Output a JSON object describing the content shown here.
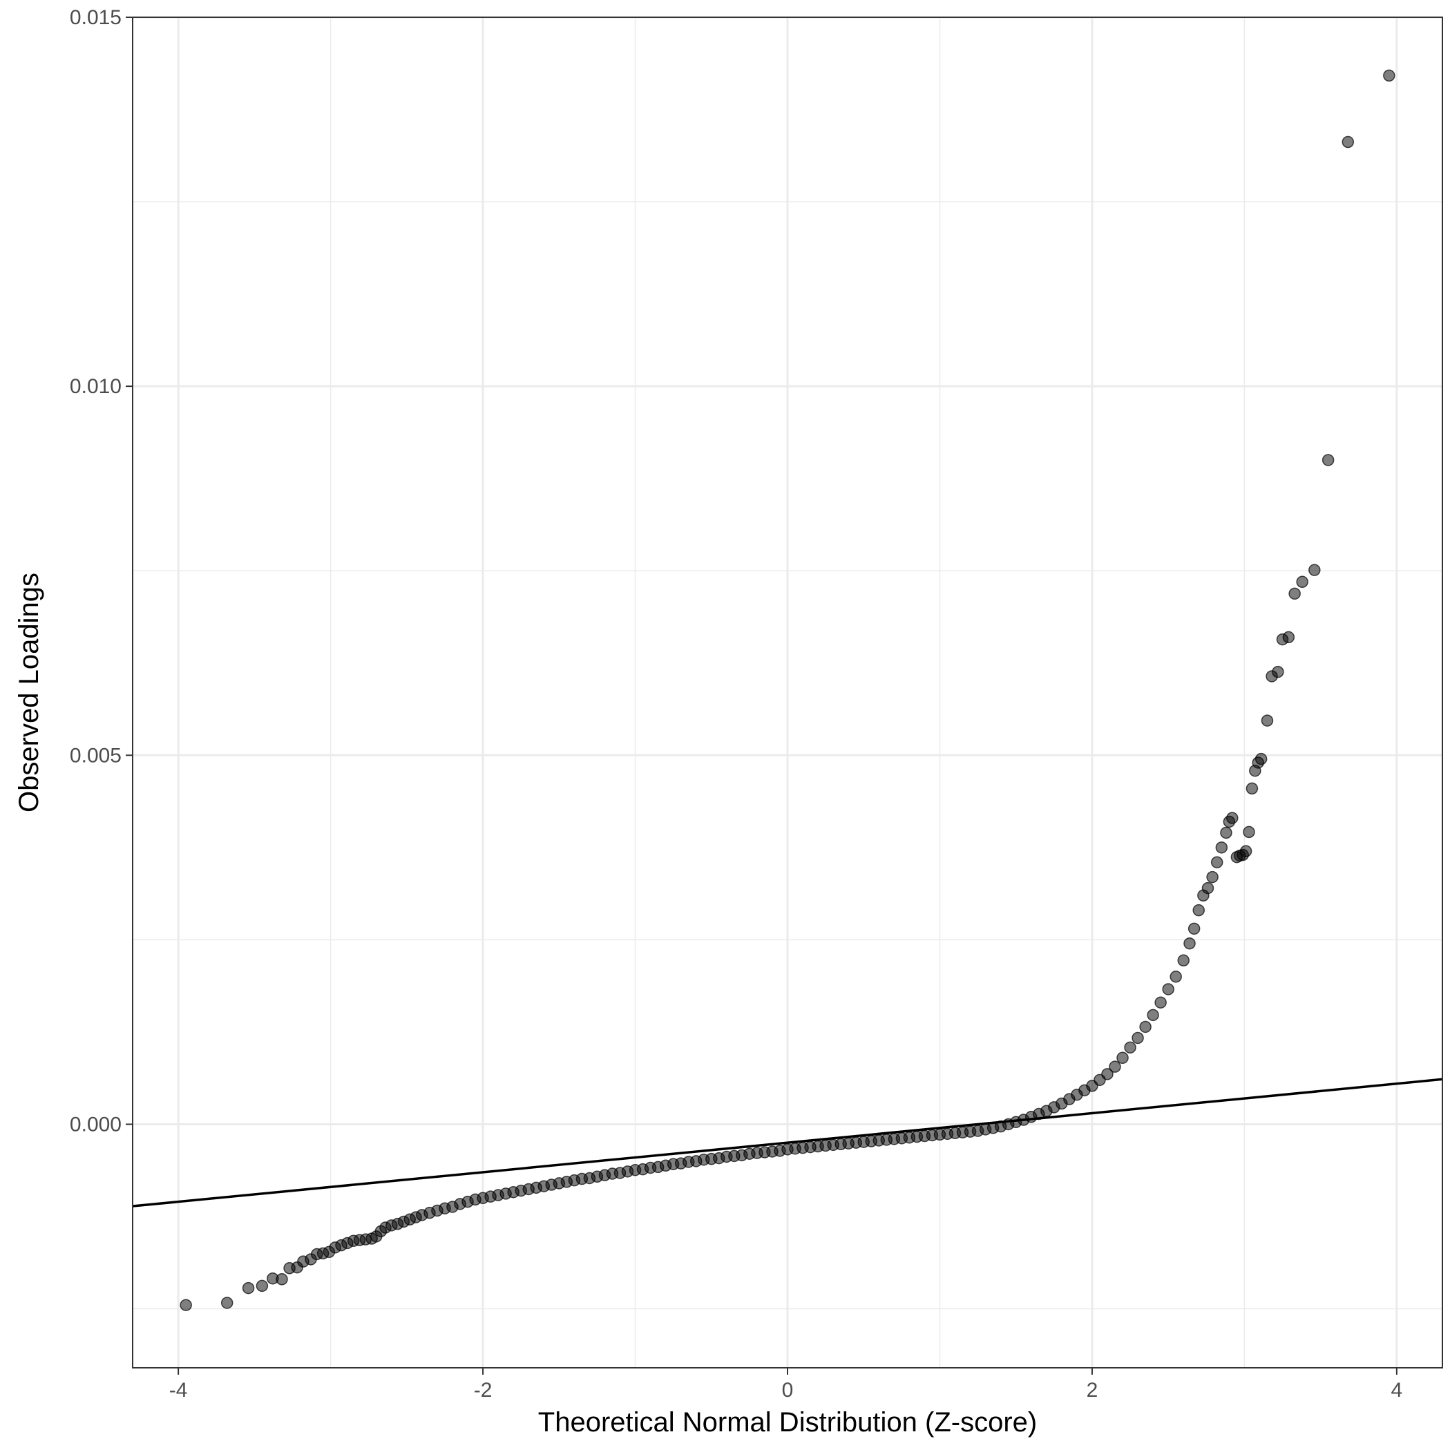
{
  "chart_data": {
    "type": "scatter",
    "title": "",
    "xlabel": "Theoretical Normal Distribution (Z-score)",
    "ylabel": "Observed Loadings",
    "xlim": [
      -4.3,
      4.3
    ],
    "ylim": [
      -0.0033,
      0.015
    ],
    "x_ticks": [
      {
        "value": -4,
        "label": "-4"
      },
      {
        "value": -2,
        "label": "-2"
      },
      {
        "value": 0,
        "label": "0"
      },
      {
        "value": 2,
        "label": "2"
      },
      {
        "value": 4,
        "label": "4"
      }
    ],
    "y_ticks": [
      {
        "value": 0.0,
        "label": "0.000"
      },
      {
        "value": 0.005,
        "label": "0.005"
      },
      {
        "value": 0.01,
        "label": "0.010"
      },
      {
        "value": 0.015,
        "label": "0.015"
      }
    ],
    "grid": true,
    "colors": {
      "points": "#000000",
      "point_opacity": 0.5,
      "line": "#000000",
      "grid": "#ebebeb",
      "panel_border": "#333333"
    },
    "reference_line": {
      "intercept": -0.00025,
      "slope": 0.0002
    },
    "points": [
      [
        -3.95,
        -0.00245
      ],
      [
        -3.68,
        -0.00242
      ],
      [
        -3.54,
        -0.00222
      ],
      [
        -3.45,
        -0.00219
      ],
      [
        -3.38,
        -0.00209
      ],
      [
        -3.32,
        -0.0021
      ],
      [
        -3.27,
        -0.00195
      ],
      [
        -3.22,
        -0.00194
      ],
      [
        -3.18,
        -0.00186
      ],
      [
        -3.13,
        -0.00183
      ],
      [
        -3.09,
        -0.00176
      ],
      [
        -3.05,
        -0.00175
      ],
      [
        -3.01,
        -0.00173
      ],
      [
        -2.97,
        -0.00167
      ],
      [
        -2.93,
        -0.00164
      ],
      [
        -2.89,
        -0.00161
      ],
      [
        -2.85,
        -0.00158
      ],
      [
        -2.81,
        -0.00157
      ],
      [
        -2.77,
        -0.00156
      ],
      [
        -2.73,
        -0.00155
      ],
      [
        -2.7,
        -0.00152
      ],
      [
        -2.67,
        -0.00145
      ],
      [
        -2.64,
        -0.0014
      ],
      [
        -2.6,
        -0.00137
      ],
      [
        -2.56,
        -0.00135
      ],
      [
        -2.52,
        -0.00132
      ],
      [
        -2.48,
        -0.00129
      ],
      [
        -2.44,
        -0.00126
      ],
      [
        -2.4,
        -0.00123
      ],
      [
        -2.35,
        -0.0012
      ],
      [
        -2.3,
        -0.00117
      ],
      [
        -2.25,
        -0.00114
      ],
      [
        -2.2,
        -0.00112
      ],
      [
        -2.15,
        -0.00108
      ],
      [
        -2.1,
        -0.00105
      ],
      [
        -2.05,
        -0.00102
      ],
      [
        -2.0,
        -0.001
      ],
      [
        -1.95,
        -0.00098
      ],
      [
        -1.9,
        -0.00096
      ],
      [
        -1.85,
        -0.00094
      ],
      [
        -1.8,
        -0.00092
      ],
      [
        -1.75,
        -0.0009
      ],
      [
        -1.7,
        -0.00088
      ],
      [
        -1.65,
        -0.00086
      ],
      [
        -1.6,
        -0.00084
      ],
      [
        -1.55,
        -0.00082
      ],
      [
        -1.5,
        -0.0008
      ],
      [
        -1.45,
        -0.00078
      ],
      [
        -1.4,
        -0.00076
      ],
      [
        -1.35,
        -0.00074
      ],
      [
        -1.3,
        -0.00073
      ],
      [
        -1.25,
        -0.00071
      ],
      [
        -1.2,
        -0.00069
      ],
      [
        -1.15,
        -0.00067
      ],
      [
        -1.1,
        -0.00066
      ],
      [
        -1.05,
        -0.00064
      ],
      [
        -1.0,
        -0.00062
      ],
      [
        -0.95,
        -0.00061
      ],
      [
        -0.9,
        -0.00059
      ],
      [
        -0.85,
        -0.00058
      ],
      [
        -0.8,
        -0.00056
      ],
      [
        -0.75,
        -0.00054
      ],
      [
        -0.7,
        -0.00053
      ],
      [
        -0.65,
        -0.00051
      ],
      [
        -0.6,
        -0.0005
      ],
      [
        -0.55,
        -0.00048
      ],
      [
        -0.5,
        -0.00047
      ],
      [
        -0.45,
        -0.00046
      ],
      [
        -0.4,
        -0.00044
      ],
      [
        -0.35,
        -0.00043
      ],
      [
        -0.3,
        -0.00042
      ],
      [
        -0.25,
        -0.0004
      ],
      [
        -0.2,
        -0.00039
      ],
      [
        -0.15,
        -0.00038
      ],
      [
        -0.1,
        -0.00037
      ],
      [
        -0.05,
        -0.00036
      ],
      [
        0.0,
        -0.00034
      ],
      [
        0.05,
        -0.00033
      ],
      [
        0.1,
        -0.00032
      ],
      [
        0.15,
        -0.00031
      ],
      [
        0.2,
        -0.0003
      ],
      [
        0.25,
        -0.00029
      ],
      [
        0.3,
        -0.00028
      ],
      [
        0.35,
        -0.00027
      ],
      [
        0.4,
        -0.00026
      ],
      [
        0.45,
        -0.00025
      ],
      [
        0.5,
        -0.00024
      ],
      [
        0.55,
        -0.00023
      ],
      [
        0.6,
        -0.00022
      ],
      [
        0.65,
        -0.00021
      ],
      [
        0.7,
        -0.0002
      ],
      [
        0.75,
        -0.00019
      ],
      [
        0.8,
        -0.00018
      ],
      [
        0.85,
        -0.00017
      ],
      [
        0.9,
        -0.00016
      ],
      [
        0.95,
        -0.00015
      ],
      [
        1.0,
        -0.00014
      ],
      [
        1.05,
        -0.00013
      ],
      [
        1.1,
        -0.00012
      ],
      [
        1.15,
        -0.00011
      ],
      [
        1.2,
        -0.0001
      ],
      [
        1.25,
        -9e-05
      ],
      [
        1.3,
        -7e-05
      ],
      [
        1.35,
        -5e-05
      ],
      [
        1.4,
        -3e-05
      ],
      [
        1.45,
        0.0
      ],
      [
        1.5,
        3e-05
      ],
      [
        1.55,
        6e-05
      ],
      [
        1.6,
        0.0001
      ],
      [
        1.65,
        0.00014
      ],
      [
        1.7,
        0.00018
      ],
      [
        1.75,
        0.00023
      ],
      [
        1.8,
        0.00028
      ],
      [
        1.85,
        0.00034
      ],
      [
        1.9,
        0.0004
      ],
      [
        1.95,
        0.00046
      ],
      [
        2.0,
        0.00052
      ],
      [
        2.05,
        0.0006
      ],
      [
        2.1,
        0.00068
      ],
      [
        2.15,
        0.00078
      ],
      [
        2.2,
        0.0009
      ],
      [
        2.25,
        0.00104
      ],
      [
        2.3,
        0.00117
      ],
      [
        2.35,
        0.00132
      ],
      [
        2.4,
        0.00148
      ],
      [
        2.45,
        0.00165
      ],
      [
        2.5,
        0.00183
      ],
      [
        2.55,
        0.002
      ],
      [
        2.6,
        0.00222
      ],
      [
        2.64,
        0.00245
      ],
      [
        2.67,
        0.00265
      ],
      [
        2.7,
        0.0029
      ],
      [
        2.73,
        0.0031
      ],
      [
        2.76,
        0.0032
      ],
      [
        2.79,
        0.00335
      ],
      [
        2.82,
        0.00355
      ],
      [
        2.85,
        0.00375
      ],
      [
        2.88,
        0.00395
      ],
      [
        2.9,
        0.0041
      ],
      [
        2.92,
        0.00415
      ],
      [
        2.95,
        0.00362
      ],
      [
        2.97,
        0.00364
      ],
      [
        2.99,
        0.00365
      ],
      [
        3.01,
        0.0037
      ],
      [
        3.03,
        0.00396
      ],
      [
        3.05,
        0.00455
      ],
      [
        3.07,
        0.00479
      ],
      [
        3.09,
        0.0049
      ],
      [
        3.11,
        0.00495
      ],
      [
        3.15,
        0.00547
      ],
      [
        3.18,
        0.00607
      ],
      [
        3.22,
        0.00613
      ],
      [
        3.25,
        0.00657
      ],
      [
        3.29,
        0.0066
      ],
      [
        3.33,
        0.00719
      ],
      [
        3.38,
        0.00735
      ],
      [
        3.46,
        0.00751
      ],
      [
        3.55,
        0.009
      ],
      [
        3.68,
        0.01331
      ],
      [
        3.95,
        0.01421
      ]
    ]
  }
}
